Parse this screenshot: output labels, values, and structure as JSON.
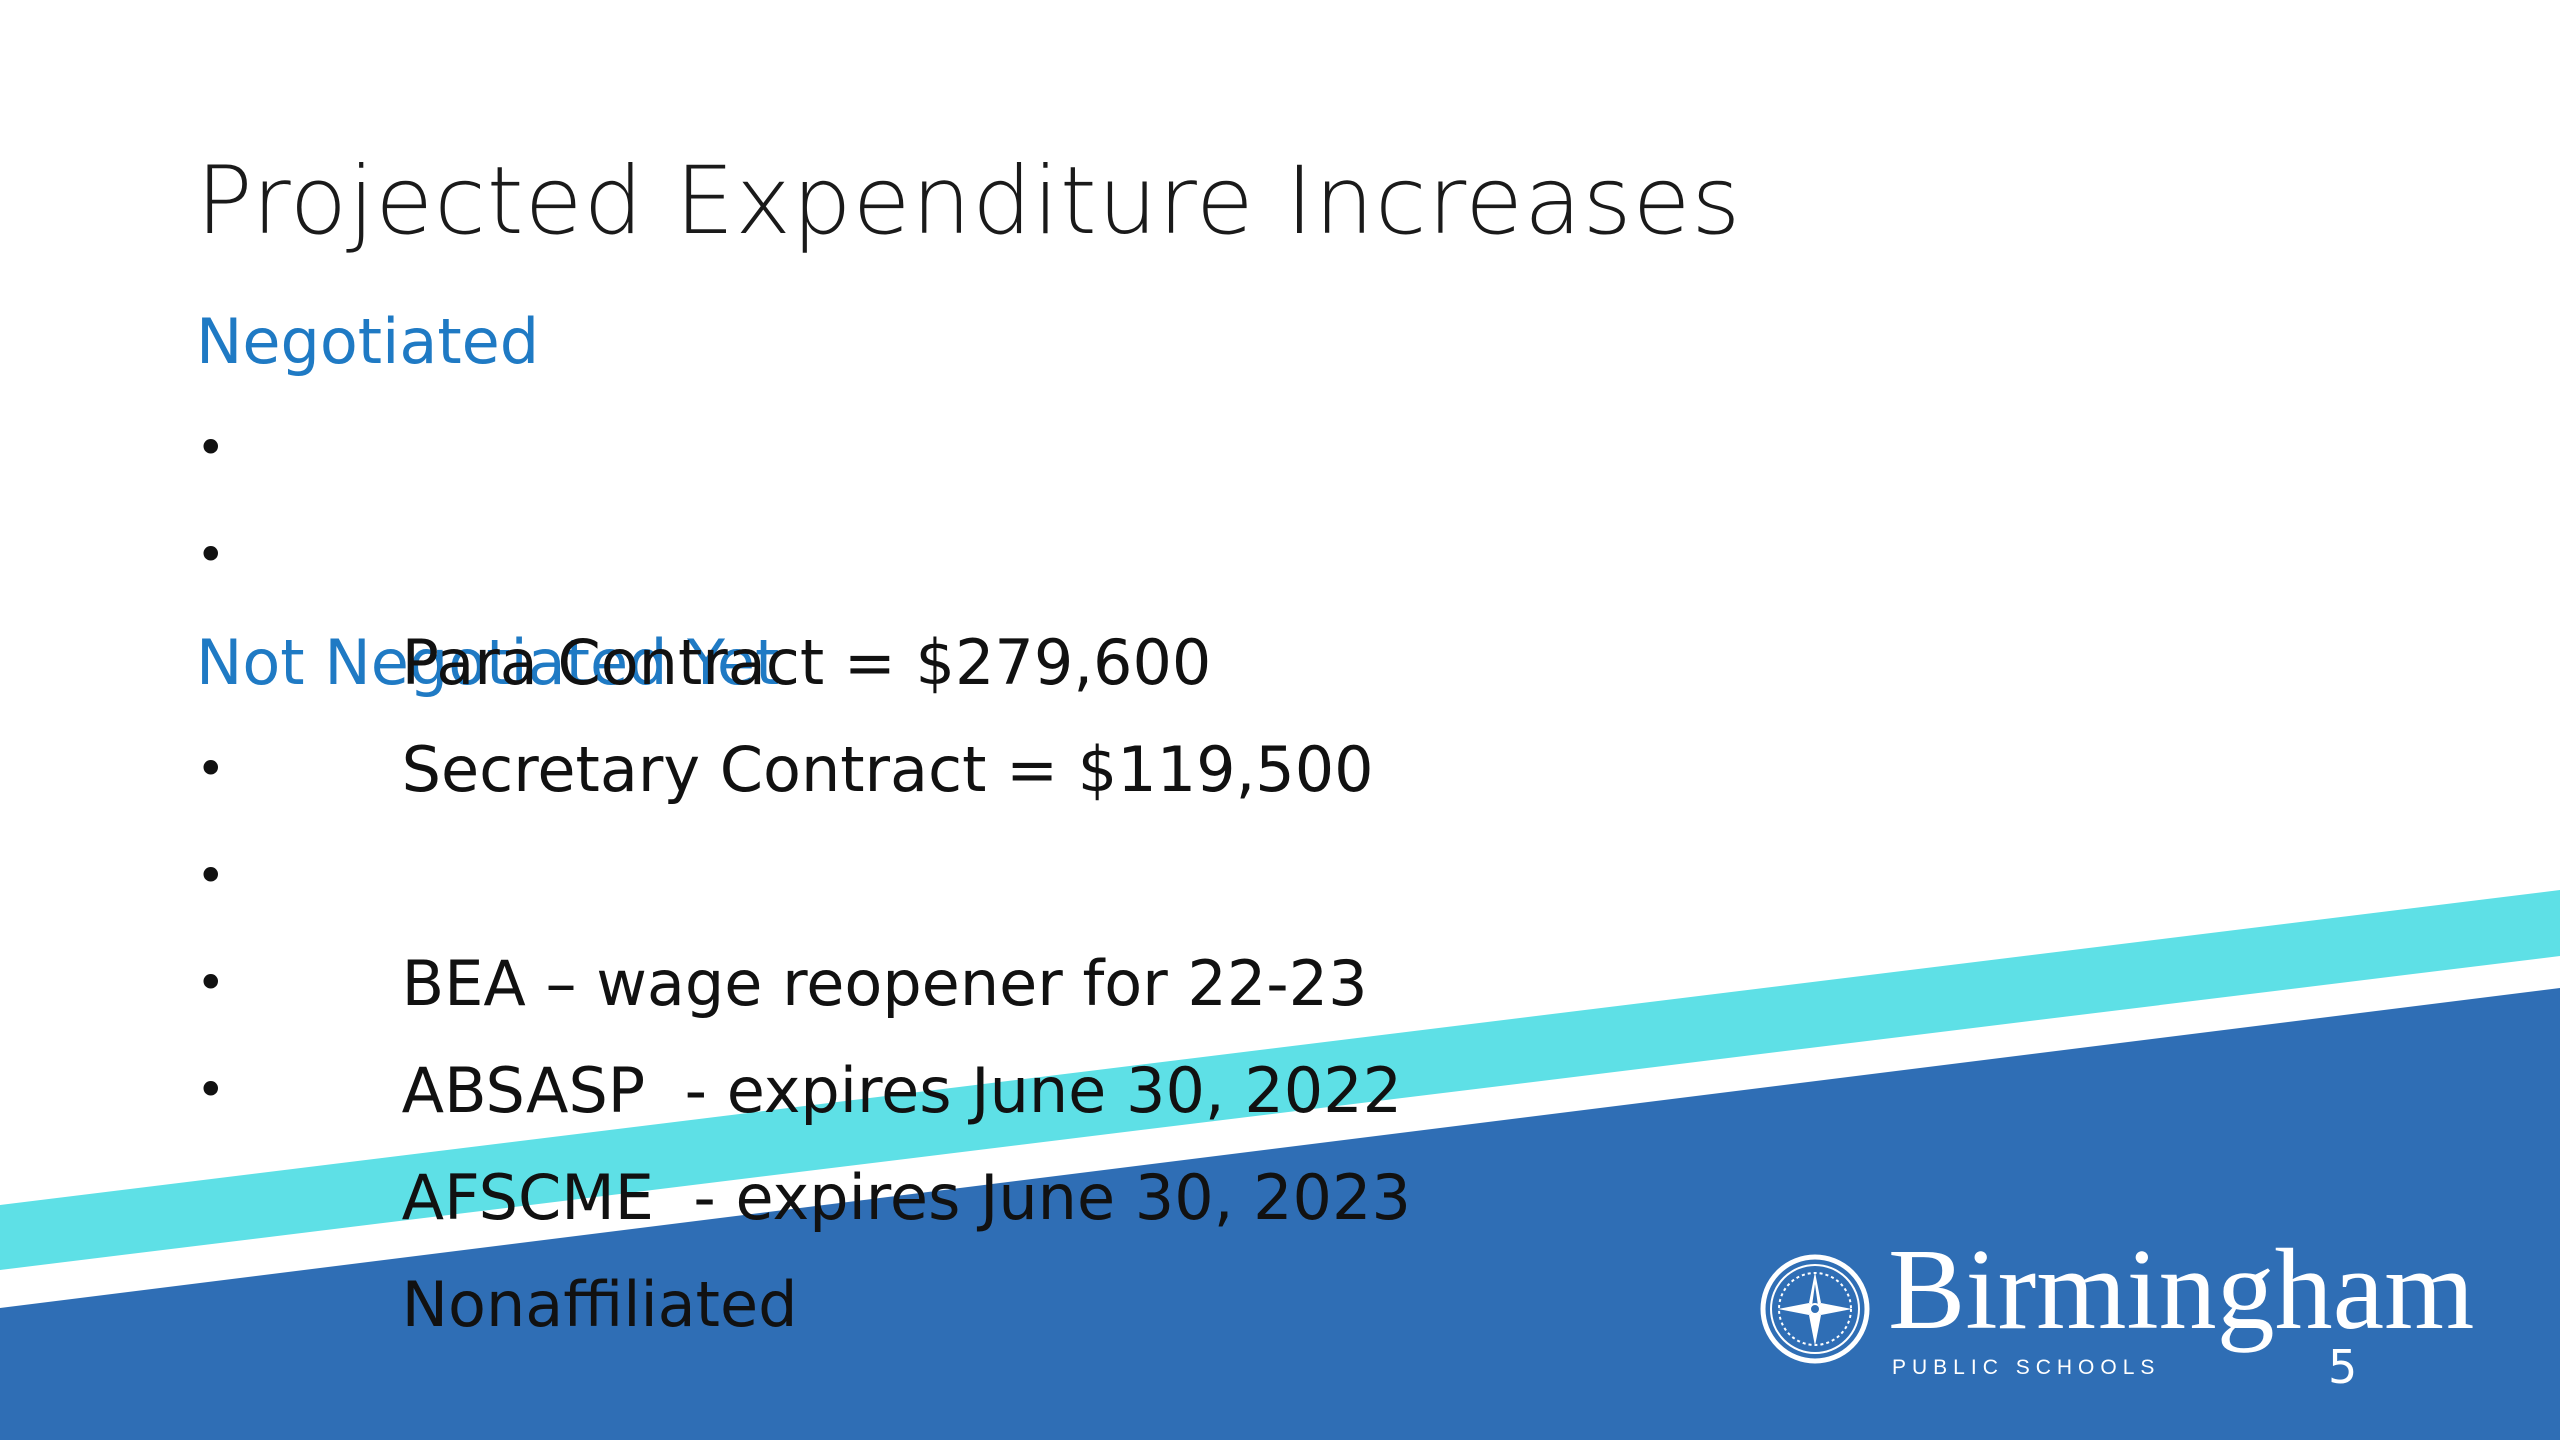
{
  "slide": {
    "title": "Projected Expenditure Increases",
    "sections": [
      {
        "heading": "Negotiated",
        "items": [
          "Para Contract = $279,600",
          "Secretary Contract = $119,500"
        ]
      },
      {
        "heading": "Not Negotiated Yet",
        "items": [
          "BEA – wage reopener for 22-23",
          "ABSASP  - expires June 30, 2022",
          "AFSCME  - expires June 30, 2023",
          "Nonaffiliated"
        ]
      }
    ],
    "bullet_glyph": "•",
    "page_number": "5"
  },
  "logo": {
    "name": "Birmingham",
    "subtitle": "PUBLIC SCHOOLS",
    "icon": "compass-seal-icon"
  },
  "colors": {
    "title": "#1a1a1a",
    "heading": "#1f7ac4",
    "body": "#111111",
    "band_blue": "#2f6eb5",
    "band_cyan": "#5ee0e6",
    "background": "#ffffff"
  }
}
